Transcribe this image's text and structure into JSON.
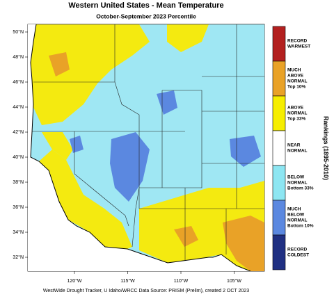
{
  "header": {
    "title": "Western United States - Mean Temperature",
    "subtitle": "October-September 2023 Percentile"
  },
  "map": {
    "lat_labels": [
      "50°N",
      "48°N",
      "46°N",
      "44°N",
      "42°N",
      "40°N",
      "38°N",
      "36°N",
      "34°N",
      "32°N"
    ],
    "lon_labels": [
      "120°W",
      "115°W",
      "110°W",
      "105°W"
    ]
  },
  "legend": {
    "title": "Rankings (1895-2010)",
    "items": [
      {
        "label": [
          "RECORD",
          "WARMEST"
        ],
        "color": "#b3201f"
      },
      {
        "label": [
          "MUCH",
          "ABOVE",
          "NORMAL",
          "Top 10%"
        ],
        "color": "#e9a227"
      },
      {
        "label": [
          "ABOVE",
          "NORMAL",
          "Top 33%"
        ],
        "color": "#f6ee00"
      },
      {
        "label": [
          "NEAR",
          "NORMAL"
        ],
        "color": "#ffffff"
      },
      {
        "label": [
          "BELOW",
          "NORMAL",
          "Bottom 33%"
        ],
        "color": "#8de6f2"
      },
      {
        "label": [
          "MUCH",
          "BELOW",
          "NORMAL",
          "Bottom 10%"
        ],
        "color": "#5b88e0"
      },
      {
        "label": [
          "RECORD",
          "COLDEST"
        ],
        "color": "#1f2f82"
      }
    ]
  },
  "footer": "WestWide Drought Tracker, U Idaho/WRCC Data Source: PRISM (Prelim), created  2 OCT 2023"
}
